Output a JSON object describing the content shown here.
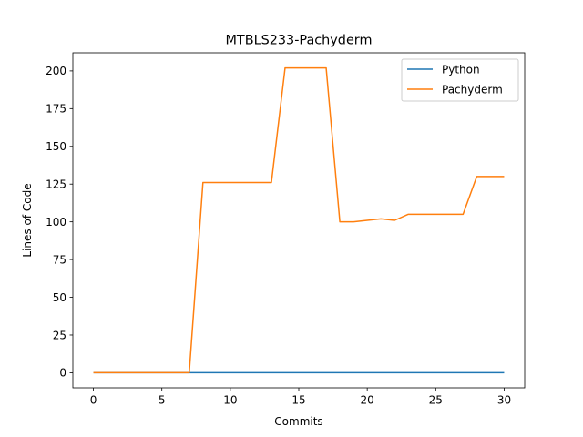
{
  "chart_data": {
    "type": "line",
    "title": "MTBLS233-Pachyderm",
    "xlabel": "Commits",
    "ylabel": "Lines of Code",
    "xlim": [
      -1.5,
      31.5
    ],
    "ylim": [
      -10,
      212
    ],
    "xticks": [
      0,
      5,
      10,
      15,
      20,
      25,
      30
    ],
    "yticks": [
      0,
      25,
      50,
      75,
      100,
      125,
      150,
      175,
      200
    ],
    "grid": false,
    "legend_position": "top-right",
    "series": [
      {
        "name": "Python",
        "color": "#1f77b4",
        "x": [
          0,
          30
        ],
        "y": [
          0,
          0
        ]
      },
      {
        "name": "Pachyderm",
        "color": "#ff7f0e",
        "x": [
          0,
          1,
          2,
          3,
          4,
          5,
          6,
          7,
          8,
          9,
          10,
          11,
          12,
          13,
          14,
          15,
          16,
          17,
          18,
          19,
          20,
          21,
          22,
          23,
          24,
          25,
          26,
          27,
          28,
          29,
          30
        ],
        "y": [
          0,
          0,
          0,
          0,
          0,
          0,
          0,
          0,
          126,
          126,
          126,
          126,
          126,
          126,
          202,
          202,
          202,
          202,
          100,
          100,
          101,
          102,
          101,
          105,
          105,
          105,
          105,
          105,
          130,
          130,
          130
        ]
      }
    ]
  }
}
